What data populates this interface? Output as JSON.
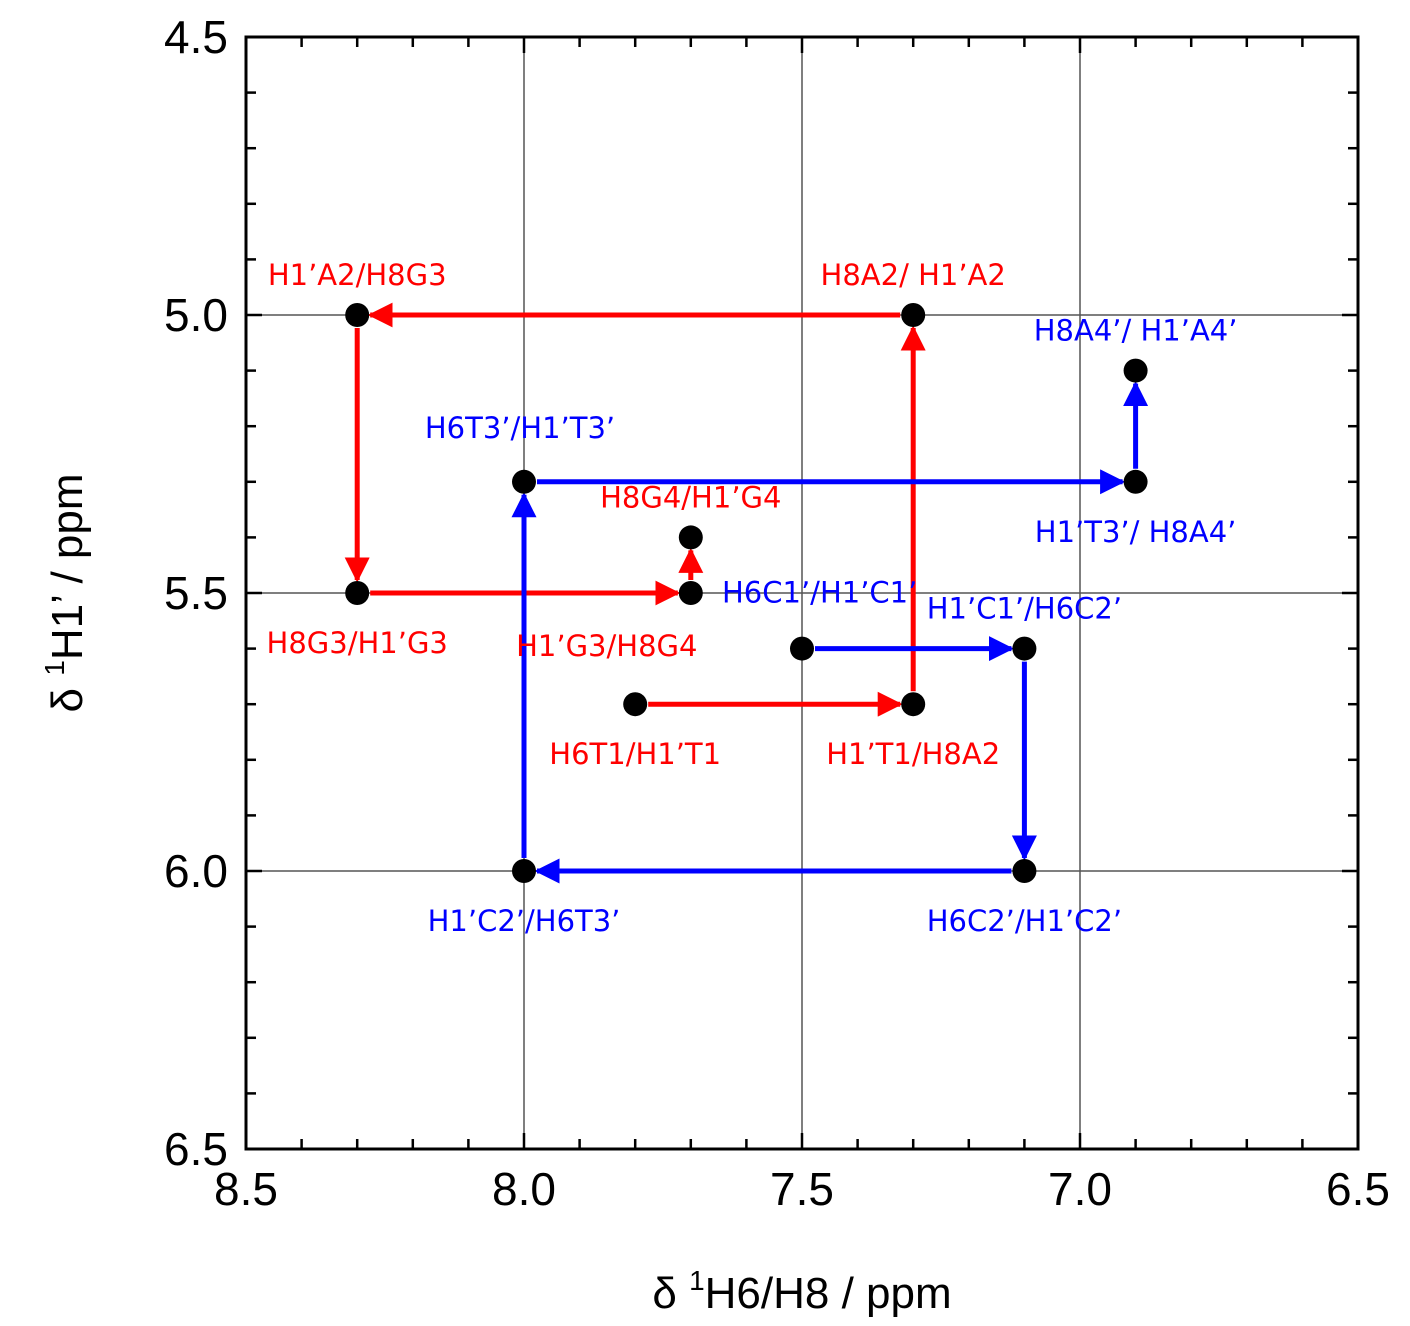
{
  "chart_data": {
    "type": "scatter",
    "x_axis": {
      "label_prefix": "δ ",
      "label_sup": "1",
      "label_main": "H6/H8 / ppm",
      "range": [
        8.5,
        6.5
      ],
      "reversed": true,
      "ticks": [
        "8.5",
        "8.0",
        "7.5",
        "7.0",
        "6.5"
      ],
      "tick_values": [
        8.5,
        8.0,
        7.5,
        7.0,
        6.5
      ],
      "grid_at": [
        8.0,
        7.5,
        7.0
      ]
    },
    "y_axis": {
      "label_prefix": "δ ",
      "label_sup": "1",
      "label_main": "H1’ / ppm",
      "range": [
        4.5,
        6.5
      ],
      "reversed": true,
      "ticks": [
        "4.5",
        "5.0",
        "5.5",
        "6.0",
        "6.5"
      ],
      "tick_values": [
        4.5,
        5.0,
        5.5,
        6.0,
        6.5
      ],
      "grid_at": [
        5.0,
        5.5,
        6.0
      ]
    },
    "grid": true,
    "colors": {
      "red": "#ff0000",
      "blue": "#0000ff",
      "point": "#000000"
    },
    "points": [
      {
        "id": "p1",
        "x": 8.3,
        "y": 5.0,
        "label": "H1’A2/H8G3",
        "color": "red",
        "anchor": "above"
      },
      {
        "id": "p2",
        "x": 7.3,
        "y": 5.0,
        "label": "H8A2/ H1’A2",
        "color": "red",
        "anchor": "above"
      },
      {
        "id": "p3",
        "x": 8.3,
        "y": 5.5,
        "label": "H8G3/H1’G3",
        "color": "red",
        "anchor": "below"
      },
      {
        "id": "p4",
        "x": 7.7,
        "y": 5.5,
        "label": "H1’G3/H8G4",
        "color": "red",
        "anchor": "below-left"
      },
      {
        "id": "p5",
        "x": 7.7,
        "y": 5.4,
        "label": "H8G4/H1’G4",
        "color": "red",
        "anchor": "above"
      },
      {
        "id": "p6",
        "x": 7.8,
        "y": 5.7,
        "label": "H6T1/H1’T1",
        "color": "red",
        "anchor": "below"
      },
      {
        "id": "p7",
        "x": 7.3,
        "y": 5.7,
        "label": "H1’T1/H8A2",
        "color": "red",
        "anchor": "below"
      },
      {
        "id": "p8",
        "x": 8.0,
        "y": 5.3,
        "label": "H6T3’/H1’T3’",
        "color": "blue",
        "anchor": "above-left"
      },
      {
        "id": "p9",
        "x": 6.9,
        "y": 5.3,
        "label": "H1’T3’/ H8A4’",
        "color": "blue",
        "anchor": "below"
      },
      {
        "id": "p10",
        "x": 6.9,
        "y": 5.1,
        "label": "H8A4’/ H1’A4’",
        "color": "blue",
        "anchor": "above"
      },
      {
        "id": "p11",
        "x": 7.5,
        "y": 5.6,
        "label": "H6C1’/H1’C1’",
        "color": "blue",
        "anchor": "above-right"
      },
      {
        "id": "p12",
        "x": 7.1,
        "y": 5.6,
        "label": "H1’C1’/H6C2’",
        "color": "blue",
        "anchor": "above"
      },
      {
        "id": "p13",
        "x": 7.1,
        "y": 6.0,
        "label": "H6C2’/H1’C2’",
        "color": "blue",
        "anchor": "below"
      },
      {
        "id": "p14",
        "x": 8.0,
        "y": 6.0,
        "label": "H1’C2’/H6T3’",
        "color": "blue",
        "anchor": "below"
      }
    ],
    "arrows": [
      {
        "from": "p6",
        "to": "p7",
        "color": "red"
      },
      {
        "from": "p7",
        "to": "p2",
        "color": "red"
      },
      {
        "from": "p2",
        "to": "p1",
        "color": "red"
      },
      {
        "from": "p1",
        "to": "p3",
        "color": "red"
      },
      {
        "from": "p3",
        "to": "p4",
        "color": "red"
      },
      {
        "from": "p4",
        "to": "p5",
        "color": "red"
      },
      {
        "from": "p11",
        "to": "p12",
        "color": "blue"
      },
      {
        "from": "p12",
        "to": "p13",
        "color": "blue"
      },
      {
        "from": "p13",
        "to": "p14",
        "color": "blue"
      },
      {
        "from": "p14",
        "to": "p8",
        "color": "blue"
      },
      {
        "from": "p8",
        "to": "p9",
        "color": "blue"
      },
      {
        "from": "p9",
        "to": "p10",
        "color": "blue"
      }
    ]
  }
}
